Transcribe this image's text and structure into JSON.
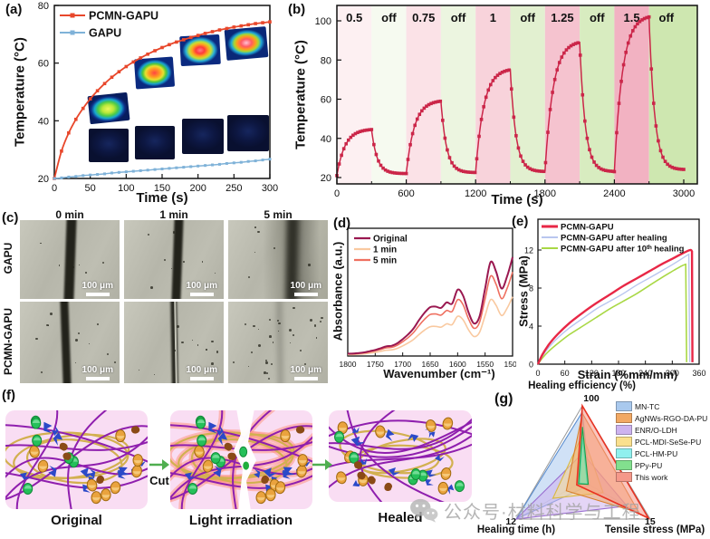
{
  "figure_labels": {
    "a": "(a)",
    "b": "(b)",
    "c": "(c)",
    "d": "(d)",
    "e": "(e)",
    "f": "(f)",
    "g": "(g)"
  },
  "panel_c": {
    "col_headers": [
      "0 min",
      "1 min",
      "5 min"
    ],
    "row_headers": [
      "GAPU",
      "PCMN-GAPU"
    ],
    "scalebar": "100 μm"
  },
  "panel_f": {
    "captions": [
      "Original",
      "Light  irradiation",
      "Healed"
    ],
    "arrow_label": "Cut"
  },
  "watermark": {
    "text": "公众号·材料科学与工程"
  },
  "chart_data": [
    {
      "panel": "a",
      "type": "line",
      "xlabel": "Time (s)",
      "ylabel": "Temperature (°C)",
      "xlim": [
        0,
        300
      ],
      "ylim": [
        20,
        80
      ],
      "xticks": [
        0,
        50,
        100,
        150,
        200,
        250,
        300
      ],
      "yticks": [
        20,
        40,
        60,
        80
      ],
      "x_step_s": 10,
      "series": [
        {
          "name": "PCMN-GAPU",
          "color": "#e8472b",
          "values": [
            20,
            29.5,
            35.8,
            40.5,
            44.3,
            47.6,
            50.4,
            52.9,
            55.1,
            57,
            58.8,
            60.4,
            61.8,
            63.1,
            64.3,
            65.4,
            66.4,
            67.3,
            68.1,
            68.9,
            69.6,
            70.3,
            70.9,
            71.5,
            72,
            72.5,
            72.9,
            73.3,
            73.7,
            74,
            74.3
          ]
        },
        {
          "name": "GAPU",
          "color": "#7fb2d8",
          "values": [
            20,
            20.2,
            20.5,
            20.7,
            21,
            21.2,
            21.4,
            21.6,
            21.9,
            22.1,
            22.3,
            22.5,
            22.7,
            22.9,
            23.1,
            23.3,
            23.5,
            23.7,
            23.9,
            24.1,
            24.3,
            24.5,
            24.7,
            24.9,
            25.2,
            25.4,
            25.6,
            25.9,
            26.1,
            26.4,
            26.7
          ]
        }
      ],
      "insets": {
        "top_row": "PCMN-GAPU infrared thermal images (bright hot core)",
        "bottom_row": "GAPU infrared thermal images (dark, no heating)"
      }
    },
    {
      "panel": "b",
      "type": "line",
      "xlabel": "Time (s)",
      "ylabel": "Temperature (°C)",
      "xlim": [
        0,
        3000
      ],
      "xticks": [
        0,
        600,
        1200,
        1800,
        2400,
        3000
      ],
      "yticks": [
        20,
        40,
        60,
        80,
        100
      ],
      "color": "#cb2649",
      "band_labels": [
        "0.5",
        "off",
        "0.75",
        "off",
        "1",
        "off",
        "1.25",
        "off",
        "1.5",
        "off"
      ],
      "on_duration_s": 300,
      "off_duration_s": 300,
      "cycles": [
        {
          "power": "0.5",
          "peak_c": 44.5
        },
        {
          "power": "0.75",
          "peak_c": 59
        },
        {
          "power": "1",
          "peak_c": 75
        },
        {
          "power": "1.25",
          "peak_c": 89
        },
        {
          "power": "1.5",
          "peak_c": 102
        }
      ],
      "start_c": [
        21,
        22,
        22.5,
        23,
        23
      ],
      "end_c": [
        22,
        22.5,
        23,
        23,
        24
      ]
    },
    {
      "panel": "d",
      "type": "line",
      "xlabel": "Wavenumber (cm⁻¹)",
      "ylabel": "Absorbance (a.u.)",
      "x_reversed": true,
      "xticks": [
        1800,
        1750,
        1700,
        1650,
        1600,
        1550,
        1500
      ],
      "x": [
        1800,
        1790,
        1780,
        1770,
        1760,
        1750,
        1740,
        1730,
        1720,
        1710,
        1700,
        1690,
        1680,
        1670,
        1660,
        1650,
        1640,
        1630,
        1620,
        1610,
        1600,
        1590,
        1580,
        1570,
        1560,
        1550,
        1540,
        1530,
        1520,
        1510,
        1500
      ],
      "series": [
        {
          "name": "Original",
          "color": "#9a1850",
          "values": [
            0.02,
            0.02,
            0.025,
            0.03,
            0.04,
            0.05,
            0.065,
            0.08,
            0.085,
            0.105,
            0.14,
            0.18,
            0.23,
            0.3,
            0.36,
            0.405,
            0.41,
            0.4,
            0.445,
            0.435,
            0.55,
            0.5,
            0.36,
            0.27,
            0.33,
            0.56,
            0.78,
            0.7,
            0.56,
            0.66,
            0.82
          ]
        },
        {
          "name": "1 min",
          "color": "#f9c9a0",
          "values": [
            0.012,
            0.012,
            0.015,
            0.018,
            0.024,
            0.03,
            0.039,
            0.048,
            0.051,
            0.063,
            0.084,
            0.108,
            0.138,
            0.18,
            0.216,
            0.243,
            0.246,
            0.24,
            0.267,
            0.261,
            0.33,
            0.3,
            0.216,
            0.162,
            0.198,
            0.336,
            0.468,
            0.42,
            0.336,
            0.396,
            0.492
          ]
        },
        {
          "name": "5 min",
          "color": "#ef7060",
          "values": [
            0.017,
            0.017,
            0.021,
            0.026,
            0.034,
            0.043,
            0.055,
            0.068,
            0.072,
            0.089,
            0.119,
            0.153,
            0.196,
            0.255,
            0.306,
            0.344,
            0.349,
            0.34,
            0.378,
            0.37,
            0.468,
            0.425,
            0.306,
            0.23,
            0.281,
            0.476,
            0.663,
            0.595,
            0.476,
            0.561,
            0.697
          ]
        }
      ]
    },
    {
      "panel": "e",
      "type": "line",
      "xlabel": "Strain (%mm/mm)",
      "ylabel": "Stress (MPa)",
      "xticks": [
        0,
        60,
        120,
        180,
        240,
        300,
        360
      ],
      "yticks": [
        0,
        4,
        8,
        12
      ],
      "series": [
        {
          "name": "PCMN-GAPU",
          "color": "#e82746",
          "width": 2.4,
          "points": [
            [
              0,
              0
            ],
            [
              10,
              1.0
            ],
            [
              25,
              2.1
            ],
            [
              45,
              3.2
            ],
            [
              70,
              4.3
            ],
            [
              100,
              5.4
            ],
            [
              130,
              6.4
            ],
            [
              160,
              7.3
            ],
            [
              190,
              8.2
            ],
            [
              220,
              9.0
            ],
            [
              250,
              9.8
            ],
            [
              280,
              10.6
            ],
            [
              305,
              11.2
            ],
            [
              325,
              11.7
            ],
            [
              340,
              12.0
            ],
            [
              344,
              11.85
            ]
          ],
          "drop": [
            345,
            0.2
          ]
        },
        {
          "name": "PCMN-GAPU after healing",
          "color": "#b9c6ef",
          "width": 1.4,
          "points": [
            [
              0,
              0
            ],
            [
              10,
              0.85
            ],
            [
              25,
              1.8
            ],
            [
              45,
              2.8
            ],
            [
              70,
              3.8
            ],
            [
              100,
              4.8
            ],
            [
              130,
              5.8
            ],
            [
              160,
              6.6
            ],
            [
              190,
              7.4
            ],
            [
              220,
              8.3
            ],
            [
              250,
              9.1
            ],
            [
              280,
              9.9
            ],
            [
              305,
              10.6
            ],
            [
              325,
              11.2
            ],
            [
              337,
              11.55
            ]
          ],
          "drop": [
            339,
            0.2
          ]
        },
        {
          "name": "PCMN-GAPU after 10ᵗʰ healing",
          "color": "#a9d845",
          "width": 1.6,
          "points": [
            [
              0,
              0
            ],
            [
              10,
              0.65
            ],
            [
              25,
              1.4
            ],
            [
              45,
              2.2
            ],
            [
              70,
              3.1
            ],
            [
              100,
              4.0
            ],
            [
              130,
              4.9
            ],
            [
              160,
              5.8
            ],
            [
              190,
              6.6
            ],
            [
              220,
              7.4
            ],
            [
              250,
              8.3
            ],
            [
              280,
              9.2
            ],
            [
              305,
              9.9
            ],
            [
              320,
              10.3
            ],
            [
              330,
              10.5
            ]
          ],
          "drop": [
            332,
            0.2
          ]
        }
      ]
    },
    {
      "panel": "g",
      "type": "radar",
      "axes": [
        {
          "label": "Healing efficiency (%)",
          "max": 100
        },
        {
          "label": "Tensile stress (MPa)",
          "max": 15
        },
        {
          "label": "Healing time (h)",
          "max": 12
        }
      ],
      "series": [
        {
          "name": "MN-TC",
          "fill": "#a9c9ee",
          "stroke": "#5d8fd0",
          "values": [
            92,
            1.5,
            12
          ]
        },
        {
          "name": "AgNWs-RGO-DA-PU",
          "fill": "#f2a964",
          "stroke": "#d97f2a",
          "values": [
            90,
            12.5,
            3
          ]
        },
        {
          "name": "ENR/O-LDH",
          "fill": "#cdb3ef",
          "stroke": "#9a6fd0",
          "values": [
            37,
            9.8,
            12
          ]
        },
        {
          "name": "PCL-MDI-SeSe-PU",
          "fill": "#fae08e",
          "stroke": "#d9b840",
          "values": [
            62,
            4.5,
            5.4
          ]
        },
        {
          "name": "PCL-HM-PU",
          "fill": "#90f0ee",
          "stroke": "#30c8c4",
          "values": [
            58,
            1.0,
            0.6
          ]
        },
        {
          "name": "PPy-PU",
          "fill": "#82e08e",
          "stroke": "#18a048",
          "values": [
            72,
            1.2,
            0.8
          ]
        },
        {
          "name": "This work",
          "fill": "#f5988a",
          "stroke": "#e83222",
          "values": [
            100,
            14.6,
            1.1
          ]
        }
      ],
      "draw_order": [
        0,
        2,
        3,
        1,
        6,
        4,
        5
      ]
    }
  ]
}
